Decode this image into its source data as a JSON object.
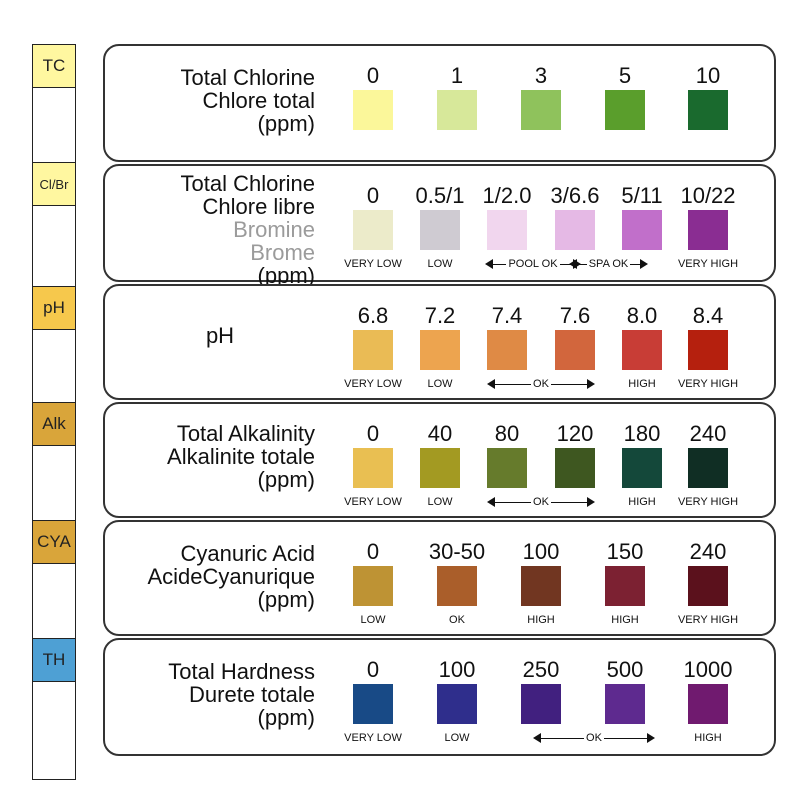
{
  "strip": {
    "pads": [
      {
        "code": "TC",
        "color": "#fff7a0"
      },
      {
        "code": "Cl/Br",
        "color": "#fff7a0"
      },
      {
        "code": "pH",
        "color": "#f6c84c"
      },
      {
        "code": "Alk",
        "color": "#d9a53a"
      },
      {
        "code": "CYA",
        "color": "#d9a53a"
      },
      {
        "code": "TH",
        "color": "#4ea0d4"
      }
    ]
  },
  "panels": [
    {
      "title": [
        "Total Chlorine",
        "Chlore total",
        "(ppm)"
      ],
      "values": [
        "0",
        "1",
        "3",
        "5",
        "10"
      ],
      "colors": [
        "#fbf79a",
        "#d7e89a",
        "#8fc25c",
        "#5a9e2c",
        "#1a6a2e"
      ],
      "labels": [
        "",
        "",
        "",
        "",
        ""
      ]
    },
    {
      "title": [
        "Total Chlorine",
        "Chlore libre",
        "Bromine",
        "Brome",
        "(ppm)"
      ],
      "values": [
        "0",
        "0.5/1",
        "1/2.0",
        "3/6.6",
        "5/11",
        "10/22"
      ],
      "colors": [
        "#ecebca",
        "#cfcbd2",
        "#f1d6ee",
        "#e5b9e5",
        "#c16fca",
        "#8a2d92"
      ],
      "labels": [
        "VERY LOW",
        "LOW",
        "",
        "",
        "",
        "VERY HIGH"
      ],
      "ranges": [
        "POOL OK",
        "SPA OK"
      ]
    },
    {
      "title": [
        "pH"
      ],
      "values": [
        "6.8",
        "7.2",
        "7.4",
        "7.6",
        "8.0",
        "8.4"
      ],
      "colors": [
        "#eabb55",
        "#eda44f",
        "#df8a45",
        "#d2663d",
        "#c83d36",
        "#b5200e"
      ],
      "labels": [
        "VERY LOW",
        "LOW",
        "",
        "",
        "HIGH",
        "VERY HIGH"
      ],
      "ranges": [
        "OK"
      ]
    },
    {
      "title": [
        "Total Alkalinity",
        "Alkalinite totale",
        "(ppm)"
      ],
      "values": [
        "0",
        "40",
        "80",
        "120",
        "180",
        "240"
      ],
      "colors": [
        "#e9bf52",
        "#a39a22",
        "#667b2c",
        "#3e5720",
        "#14483a",
        "#102e24"
      ],
      "labels": [
        "VERY LOW",
        "LOW",
        "",
        "",
        "HIGH",
        "VERY HIGH"
      ],
      "ranges": [
        "OK"
      ]
    },
    {
      "title": [
        "Cyanuric Acid",
        "AcideCyanurique",
        "(ppm)"
      ],
      "values": [
        "0",
        "30-50",
        "100",
        "150",
        "240"
      ],
      "colors": [
        "#be9334",
        "#aa5e2a",
        "#713621",
        "#7c2132",
        "#5b111c"
      ],
      "labels": [
        "LOW",
        "OK",
        "HIGH",
        "HIGH",
        "VERY HIGH"
      ]
    },
    {
      "title": [
        "Total Hardness",
        "Durete totale",
        "(ppm)"
      ],
      "values": [
        "0",
        "100",
        "250",
        "500",
        "1000"
      ],
      "colors": [
        "#184a86",
        "#2f2e8c",
        "#41207f",
        "#5e2a8f",
        "#701a6f"
      ],
      "labels": [
        "VERY LOW",
        "LOW",
        "",
        "",
        "HIGH"
      ],
      "ranges": [
        "OK"
      ]
    }
  ]
}
